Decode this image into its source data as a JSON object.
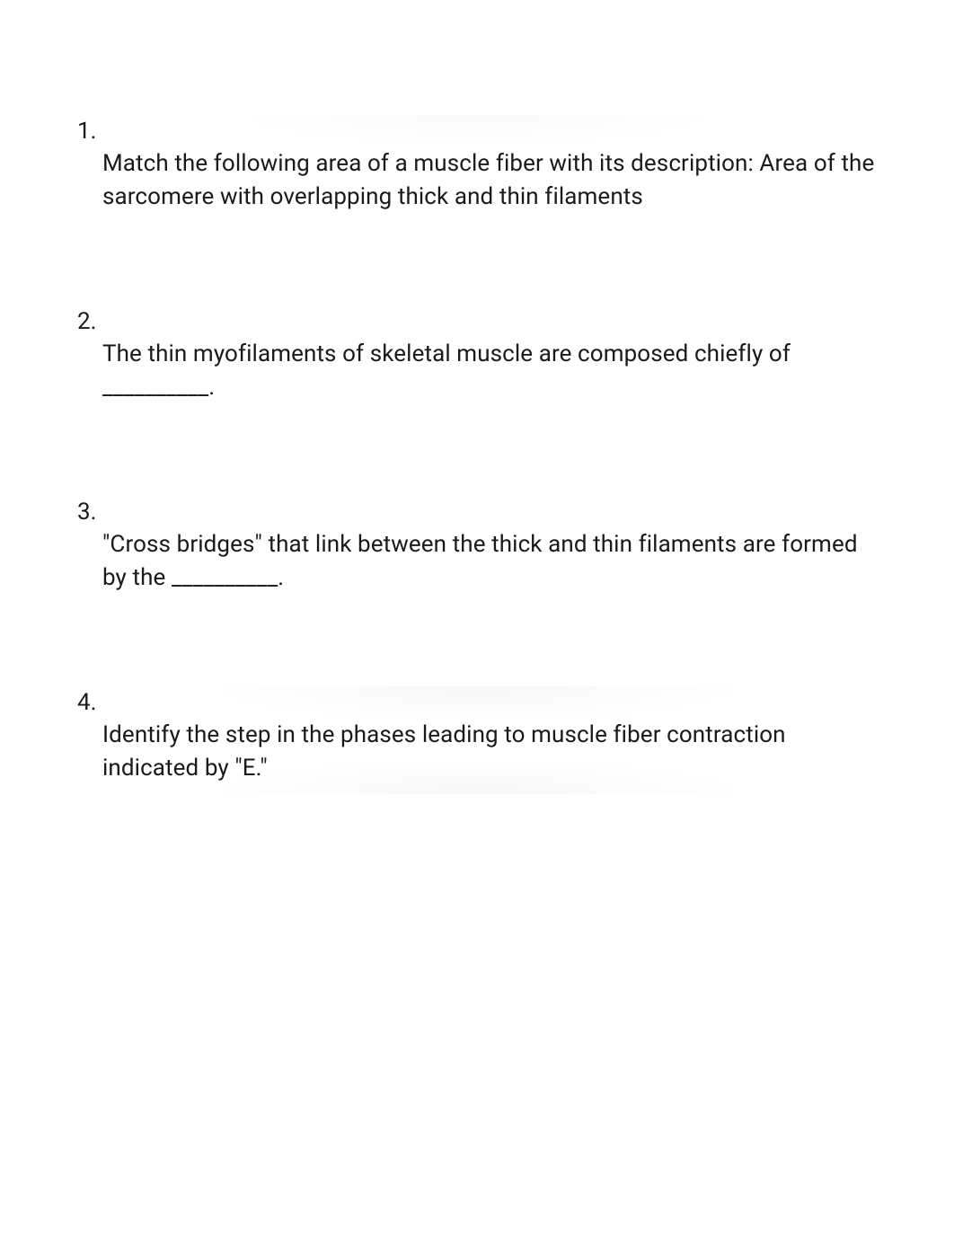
{
  "questions": [
    {
      "number": "1.",
      "text": "Match the following area of a muscle fiber with its description: Area of the sarcomere with overlapping thick and thin filaments"
    },
    {
      "number": "2.",
      "text": "The thin myofilaments of skeletal muscle are composed chiefly of __________."
    },
    {
      "number": "3.",
      "text": "\"Cross bridges\" that link between the thick and thin filaments are formed by the __________."
    },
    {
      "number": "4.",
      "text": "Identify the step in the phases leading to muscle fiber contraction indicated by \"E.\""
    }
  ]
}
